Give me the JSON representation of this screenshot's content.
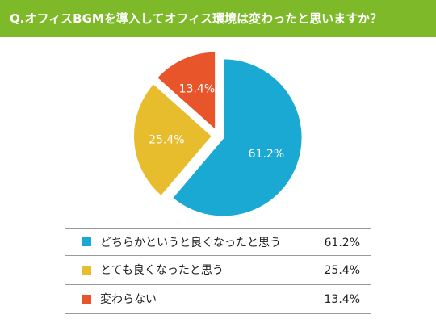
{
  "header": {
    "title": "Q.オフィスBGMを導入してオフィス環境は変わったと思いますか？"
  },
  "chart_data": {
    "type": "pie",
    "title": "Q.オフィスBGMを導入してオフィス環境は変わったと思いますか？",
    "categories": [
      "どちらかというと良くなったと思う",
      "とても良くなったと思う",
      "変わらない"
    ],
    "values": [
      61.2,
      25.4,
      13.4
    ],
    "value_labels": [
      "61.2%",
      "25.4%",
      "13.4%"
    ],
    "colors": [
      "#1aa9d3",
      "#e7bd2d",
      "#e8552b"
    ],
    "start": "top, clockwise",
    "exploded": true
  },
  "legend": [
    {
      "label": "どちらかというと良くなったと思う",
      "value": "61.2%",
      "color": "#1aa9d3"
    },
    {
      "label": "とても良くなったと思う",
      "value": "25.4%",
      "color": "#e7bd2d"
    },
    {
      "label": "変わらない",
      "value": "13.4%",
      "color": "#e8552b"
    }
  ]
}
